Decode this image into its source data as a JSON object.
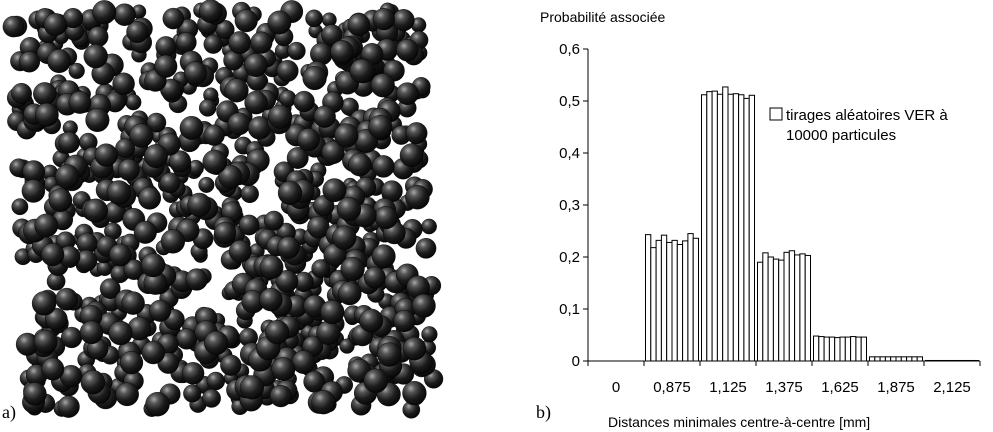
{
  "panels": {
    "a_label": "a)",
    "b_label": "b)"
  },
  "chart_data": {
    "type": "bar",
    "title": "",
    "ylabel": "Probabilité associée",
    "xlabel": "Distances minimales centre-à-centre [mm]",
    "ylim": [
      0,
      0.6
    ],
    "y_ticks": [
      "0",
      "0,1",
      "0,2",
      "0,3",
      "0,4",
      "0,5",
      "0,6"
    ],
    "categories": [
      "0",
      "0,875",
      "1,125",
      "1,375",
      "1,625",
      "1,875",
      "2,125"
    ],
    "legend": {
      "position": "right",
      "lines": [
        "tirages aléatoires VER à",
        "10000 particules"
      ]
    },
    "series_count_per_category": 10,
    "values": [
      [
        0,
        0,
        0,
        0,
        0,
        0,
        0,
        0,
        0,
        0
      ],
      [
        0.243,
        0.218,
        0.232,
        0.242,
        0.228,
        0.232,
        0.224,
        0.231,
        0.245,
        0.236
      ],
      [
        0.512,
        0.518,
        0.519,
        0.513,
        0.527,
        0.513,
        0.514,
        0.512,
        0.505,
        0.511
      ],
      [
        0.19,
        0.208,
        0.2,
        0.196,
        0.194,
        0.209,
        0.212,
        0.204,
        0.206,
        0.203
      ],
      [
        0.048,
        0.047,
        0.046,
        0.046,
        0.045,
        0.046,
        0.046,
        0.047,
        0.046,
        0.046
      ],
      [
        0.008,
        0.008,
        0.008,
        0.008,
        0.008,
        0.008,
        0.008,
        0.008,
        0.008,
        0.008
      ],
      [
        0.001,
        0.001,
        0.001,
        0.001,
        0.001,
        0.001,
        0.001,
        0.001,
        0.001,
        0.001
      ]
    ],
    "bar_style": {
      "fill": "#ffffff",
      "stroke": "#000000"
    }
  },
  "sphere_pack": {
    "description_free": true,
    "sphere_color": "#1a1a1a",
    "highlight_color": "#9a9a9a",
    "seed": 7
  }
}
